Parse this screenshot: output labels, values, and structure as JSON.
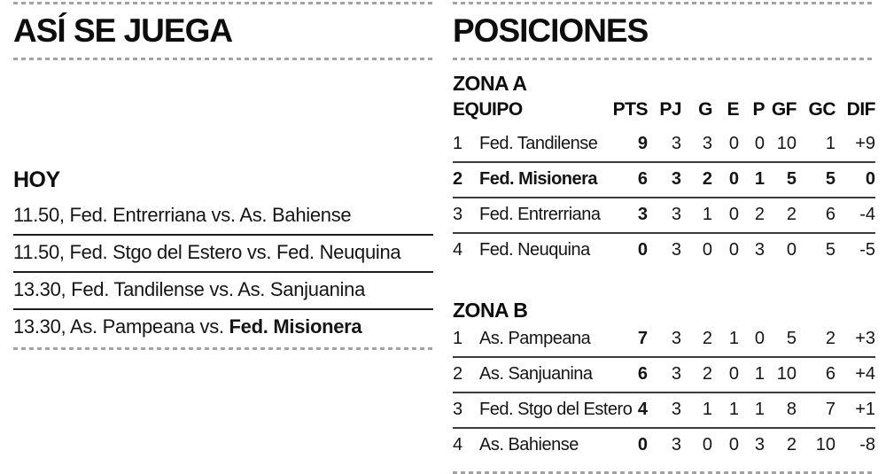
{
  "left": {
    "title": "ASÍ SE JUEGA",
    "section_label": "HOY",
    "fixtures": [
      {
        "text": "11.50, Fed. Entrerriana vs. As. Bahiense",
        "highlight": "",
        "rule": "solid"
      },
      {
        "text": "11.50, Fed. Stgo del Estero vs. Fed. Neuquina",
        "highlight": "",
        "rule": "solid"
      },
      {
        "text": "13.30, Fed. Tandilense vs. As. Sanjuanina",
        "highlight": "",
        "rule": "solid"
      },
      {
        "text": "13.30, As. Pampeana vs. ",
        "highlight": "Fed. Misionera",
        "rule": "dashed"
      }
    ]
  },
  "right": {
    "title": "POSICIONES",
    "header": {
      "equipo": "EQUIPO",
      "cols": [
        "PTS",
        "PJ",
        "G",
        "E",
        "P",
        "GF",
        "GC",
        "DIF"
      ]
    },
    "stat_keys": [
      "pts",
      "pj",
      "g",
      "e",
      "p",
      "gf",
      "gc",
      "dif"
    ],
    "zones": [
      {
        "label": "ZONA A",
        "rows": [
          {
            "pos": "1",
            "team": "Fed. Tandilense",
            "stats": [
              "9",
              "3",
              "3",
              "0",
              "0",
              "10",
              "1",
              "+9"
            ],
            "bold": false,
            "rule": true
          },
          {
            "pos": "2",
            "team": "Fed. Misionera",
            "stats": [
              "6",
              "3",
              "2",
              "0",
              "1",
              "5",
              "5",
              "0"
            ],
            "bold": true,
            "rule": true
          },
          {
            "pos": "3",
            "team": "Fed. Entrerriana",
            "stats": [
              "3",
              "3",
              "1",
              "0",
              "2",
              "2",
              "6",
              "-4"
            ],
            "bold": false,
            "rule": true
          },
          {
            "pos": "4",
            "team": "Fed. Neuquina",
            "stats": [
              "0",
              "3",
              "0",
              "0",
              "3",
              "0",
              "5",
              "-5"
            ],
            "bold": false,
            "rule": false
          }
        ]
      },
      {
        "label": "ZONA B",
        "rows": [
          {
            "pos": "1",
            "team": "As. Pampeana",
            "stats": [
              "7",
              "3",
              "2",
              "1",
              "0",
              "5",
              "2",
              "+3"
            ],
            "bold": false,
            "rule": true
          },
          {
            "pos": "2",
            "team": "As. Sanjuanina",
            "stats": [
              "6",
              "3",
              "2",
              "0",
              "1",
              "10",
              "6",
              "+4"
            ],
            "bold": false,
            "rule": true
          },
          {
            "pos": "3",
            "team": "Fed. Stgo del Estero",
            "stats": [
              "4",
              "3",
              "1",
              "1",
              "1",
              "8",
              "7",
              "+1"
            ],
            "bold": false,
            "rule": true
          },
          {
            "pos": "4",
            "team": "As. Bahiense",
            "stats": [
              "0",
              "3",
              "0",
              "0",
              "3",
              "2",
              "10",
              "-8"
            ],
            "bold": false,
            "rule": false
          }
        ]
      }
    ]
  },
  "colors": {
    "text": "#151515",
    "solid_rule": "#1d1d1d",
    "dashed_rule": "#a3a3a3",
    "table_rule": "#3c3c3c"
  }
}
